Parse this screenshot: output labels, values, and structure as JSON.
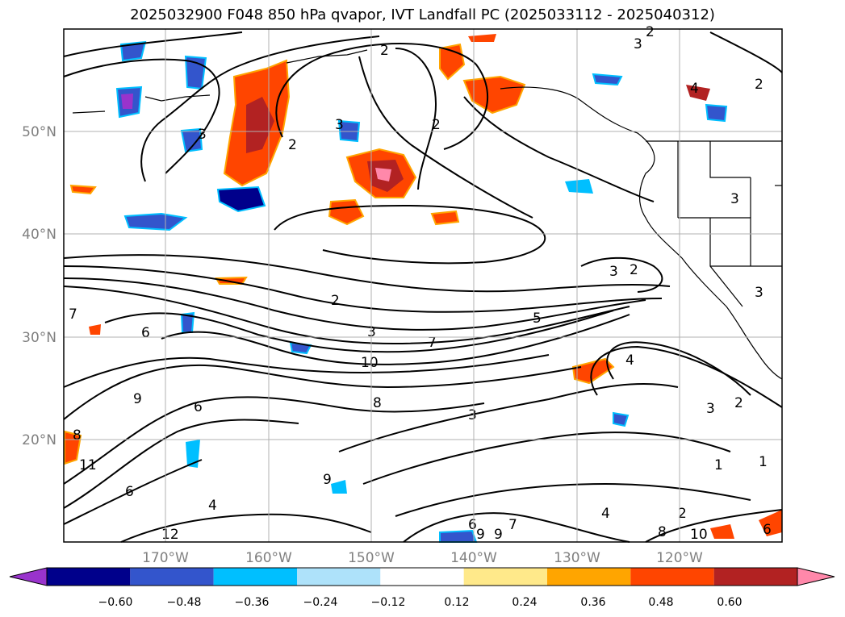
{
  "title": "2025032900 F048 850 hPa qvapor, IVT Landfall PC (2025033112 - 2025040312)",
  "lat_labels": [
    "50°N",
    "40°N",
    "30°N",
    "20°N"
  ],
  "lon_labels": [
    "170°W",
    "160°W",
    "150°W",
    "140°W",
    "130°W",
    "120°W"
  ],
  "colorbar": {
    "ticks": [
      "−0.60",
      "−0.48",
      "−0.36",
      "−0.24",
      "−0.12",
      "0.12",
      "0.24",
      "0.36",
      "0.48",
      "0.60"
    ],
    "colors": [
      "#9933cc",
      "#00008b",
      "#3355cc",
      "#00bfff",
      "#aee2fa",
      "#ffffff",
      "#ffe98a",
      "#ffa500",
      "#ff4500",
      "#b22222",
      "#ff88aa"
    ]
  },
  "contour_labels": [
    "2",
    "3",
    "2",
    "2",
    "3",
    "2",
    "4",
    "2",
    "3",
    "3",
    "3",
    "3",
    "2",
    "2",
    "3",
    "10",
    "7",
    "4",
    "6",
    "7",
    "9",
    "6",
    "8",
    "3",
    "3",
    "2",
    "1",
    "1",
    "2",
    "11",
    "8",
    "6",
    "9",
    "4",
    "12",
    "6",
    "9",
    "7",
    "4",
    "8",
    "10",
    "9",
    "6",
    "5"
  ]
}
